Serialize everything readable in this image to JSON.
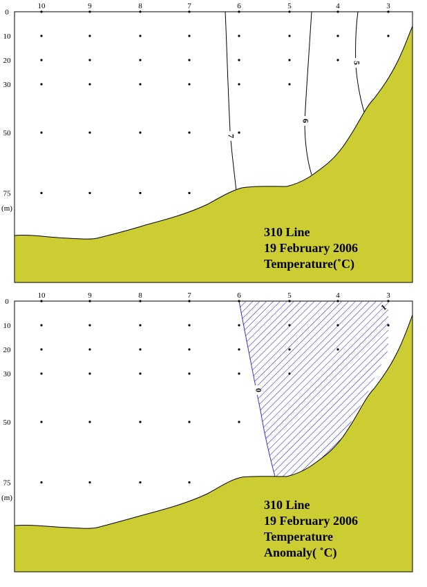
{
  "chart_data": [
    {
      "type": "contour",
      "title_lines": [
        "310 Line",
        "19 February 2006",
        "Temperature(˚C)"
      ],
      "ylabel": "(m)",
      "stations": [
        "10",
        "9",
        "8",
        "7",
        "6",
        "5",
        "4",
        "3"
      ],
      "depths": [
        "0",
        "10",
        "20",
        "30",
        "50",
        "75"
      ],
      "sample_depths": [
        0,
        10,
        20,
        30,
        50,
        75
      ],
      "ylim": [
        0,
        100
      ],
      "contours": [
        {
          "label": "7",
          "value": 7
        },
        {
          "label": "6",
          "value": 6
        },
        {
          "label": "5",
          "value": 5
        }
      ],
      "colors": {
        "seabed": "#cccc33",
        "contour": "#000000",
        "frame": "#000000"
      }
    },
    {
      "type": "contour",
      "title_lines": [
        "310 Line",
        "19 February 2006",
        "Temperature",
        "Anomaly( ˚C)"
      ],
      "ylabel": "(m)",
      "stations": [
        "10",
        "9",
        "8",
        "7",
        "6",
        "5",
        "4",
        "3"
      ],
      "depths": [
        "0",
        "10",
        "20",
        "30",
        "50",
        "75"
      ],
      "sample_depths": [
        0,
        10,
        20,
        30,
        50,
        75
      ],
      "ylim": [
        0,
        100
      ],
      "contours": [
        {
          "label": "0",
          "value": 0
        },
        {
          "label": "1",
          "value": 1
        }
      ],
      "shaded_region": "anomaly > 0",
      "colors": {
        "seabed": "#cccc33",
        "contour": "#3333cc",
        "hatch": "#3333cc",
        "frame": "#000000"
      }
    }
  ]
}
